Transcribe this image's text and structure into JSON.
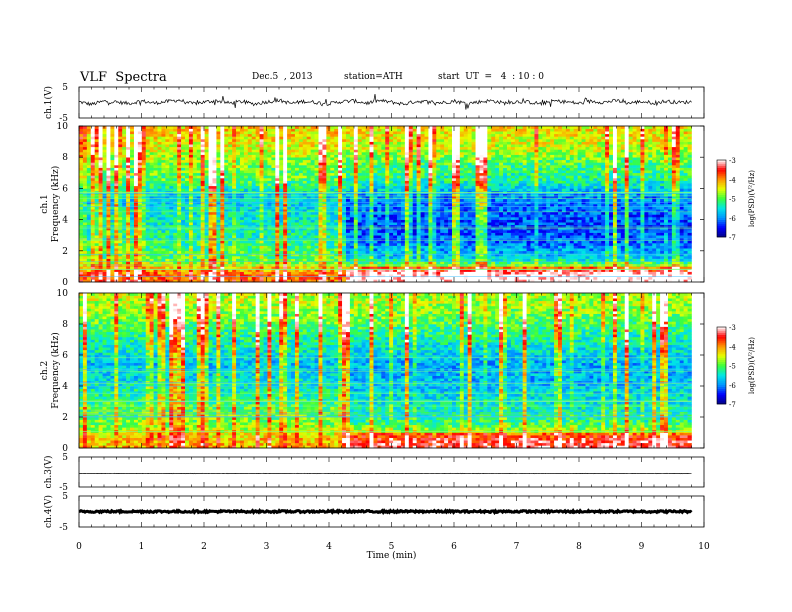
{
  "header": {
    "title": "VLF  Spectra",
    "date": "Dec.5  , 2013",
    "station": "station=ATH",
    "start": "start  UT  =   4  : 10 : 0"
  },
  "chart_data": [
    {
      "type": "line",
      "title": "",
      "ylabel": "ch.1(V)",
      "ylim": [
        -5,
        5
      ],
      "yticks": [
        "5",
        "-5"
      ],
      "x": [
        0,
        0.2,
        0.4,
        0.6,
        0.8,
        1.0,
        1.2,
        1.4,
        1.6,
        1.8,
        2.0,
        2.2,
        2.4,
        2.6,
        2.8,
        3.0,
        3.2,
        3.4,
        3.6,
        3.8,
        4.0,
        4.2,
        4.4,
        4.6,
        4.8,
        5.0,
        5.2,
        5.4,
        5.6,
        5.8,
        6.0,
        6.2,
        6.4,
        6.6,
        6.8,
        7.0,
        7.2,
        7.4,
        7.6,
        7.8,
        8.0,
        8.2,
        8.4,
        8.6,
        8.8,
        9.0,
        9.2,
        9.4,
        9.6,
        9.8
      ],
      "values": [
        0.2,
        -0.6,
        0.4,
        0.1,
        -0.3,
        0.5,
        -0.2,
        0.3,
        0.8,
        -0.4,
        0.1,
        0.6,
        -0.2,
        0.3,
        -0.5,
        0.2,
        0.7,
        -0.3,
        0.4,
        0.0,
        -0.4,
        0.3,
        0.5,
        -0.2,
        0.6,
        0.1,
        -0.5,
        0.4,
        0.2,
        -0.1,
        0.5,
        -0.3,
        0.2,
        0.6,
        -0.2,
        0.3,
        0.1,
        -0.4,
        0.5,
        0.2,
        -0.3,
        0.4,
        0.1,
        0.6,
        -0.2,
        0.3,
        -0.1,
        0.4,
        0.0,
        0.2
      ]
    },
    {
      "type": "heatmap",
      "title": "",
      "ylabel": "Frequency  (kHz)",
      "channel_label": "ch.1",
      "ylim": [
        0,
        10
      ],
      "yticks": [
        "0",
        "2",
        "4",
        "6",
        "8",
        "10"
      ],
      "colorbar": {
        "label": "log(PSD)(V²/Hz)",
        "range": [
          -7,
          -3
        ],
        "ticks": [
          "-3",
          "-4",
          "-5",
          "-6",
          "-7"
        ],
        "colors": [
          "#000080",
          "#0000ff",
          "#00bfff",
          "#00ff80",
          "#ffff00",
          "#ff8000",
          "#ff0000",
          "#ffffff"
        ]
      },
      "bands_log_psd": {
        "freq_khz": [
          0.5,
          1.5,
          2.5,
          3.5,
          4.5,
          5.5,
          6.5,
          7.5,
          8.5,
          9.5
        ],
        "early": [
          -3.8,
          -5.0,
          -5.2,
          -5.4,
          -5.5,
          -5.7,
          -5.0,
          -4.9,
          -4.5,
          -4.3
        ],
        "late": [
          -3.5,
          -5.6,
          -6.1,
          -6.3,
          -6.2,
          -6.0,
          -5.3,
          -5.1,
          -4.6,
          -4.4
        ]
      },
      "change_time_min": 4.3
    },
    {
      "type": "heatmap",
      "title": "",
      "ylabel": "Frequency  (kHz)",
      "channel_label": "ch.2",
      "ylim": [
        0,
        10
      ],
      "yticks": [
        "0",
        "2",
        "4",
        "6",
        "8",
        "10"
      ],
      "colorbar": {
        "label": "log(PSD)(V²/Hz)",
        "range": [
          -7,
          -3
        ],
        "ticks": [
          "-3",
          "-4",
          "-5",
          "-6",
          "-7"
        ],
        "colors": [
          "#000080",
          "#0000ff",
          "#00bfff",
          "#00ff80",
          "#ffff00",
          "#ff8000",
          "#ff0000",
          "#ffffff"
        ]
      },
      "bands_log_psd": {
        "freq_khz": [
          0.5,
          1.5,
          2.5,
          3.5,
          4.5,
          5.5,
          6.5,
          7.5,
          8.5,
          9.5
        ],
        "early": [
          -4.2,
          -4.8,
          -5.0,
          -5.3,
          -5.6,
          -5.7,
          -5.4,
          -5.2,
          -4.8,
          -4.6
        ],
        "late": [
          -4.0,
          -5.1,
          -5.4,
          -5.6,
          -5.8,
          -5.8,
          -5.5,
          -5.2,
          -4.9,
          -4.7
        ]
      },
      "change_time_min": 4.3
    },
    {
      "type": "line",
      "title": "",
      "ylabel": "ch.3(V)",
      "ylim": [
        -5,
        5
      ],
      "yticks": [
        "5",
        "-5"
      ],
      "x": [
        0,
        9.8
      ],
      "values": [
        -0.5,
        -0.5
      ]
    },
    {
      "type": "line",
      "title": "",
      "ylabel": "ch.4(V)",
      "ylim": [
        -5,
        5
      ],
      "yticks": [
        "5",
        "-5"
      ],
      "x": [
        0,
        9.8
      ],
      "values": [
        0.0,
        0.0
      ]
    }
  ],
  "xaxis": {
    "label": "Time  (min)",
    "range": [
      0,
      10
    ],
    "ticks": [
      "0",
      "1",
      "2",
      "3",
      "4",
      "5",
      "6",
      "7",
      "8",
      "9",
      "10"
    ]
  }
}
